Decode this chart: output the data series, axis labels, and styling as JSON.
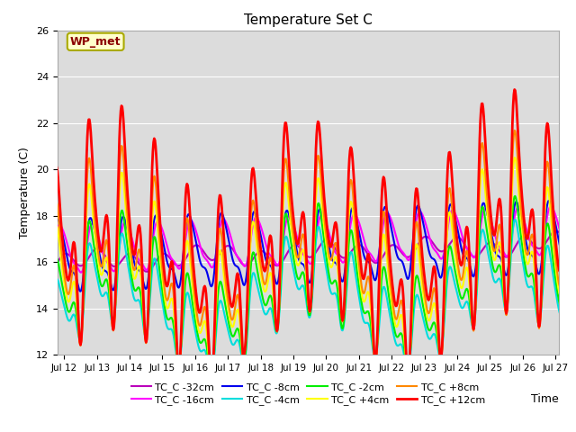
{
  "title": "Temperature Set C",
  "xlabel": "Time",
  "ylabel": "Temperature (C)",
  "ylim": [
    12,
    26
  ],
  "yticks": [
    12,
    14,
    16,
    18,
    20,
    22,
    24,
    26
  ],
  "xlim_days": [
    11.8,
    27.1
  ],
  "annotation_text": "WP_met",
  "annotation_color": "#8B0000",
  "annotation_bg": "#FFFFCC",
  "annotation_edge": "#AAAA00",
  "plot_bg": "#DCDCDC",
  "series": [
    {
      "label": "TC_C -32cm",
      "color": "#BB00BB",
      "lw": 1.5,
      "zorder": 3
    },
    {
      "label": "TC_C -16cm",
      "color": "#FF00FF",
      "lw": 1.5,
      "zorder": 4
    },
    {
      "label": "TC_C -8cm",
      "color": "#0000EE",
      "lw": 1.5,
      "zorder": 5
    },
    {
      "label": "TC_C -4cm",
      "color": "#00DDDD",
      "lw": 1.5,
      "zorder": 6
    },
    {
      "label": "TC_C -2cm",
      "color": "#00EE00",
      "lw": 1.5,
      "zorder": 7
    },
    {
      "label": "TC_C +4cm",
      "color": "#FFFF00",
      "lw": 1.5,
      "zorder": 8
    },
    {
      "label": "TC_C +8cm",
      "color": "#FF8800",
      "lw": 1.5,
      "zorder": 9
    },
    {
      "label": "TC_C +12cm",
      "color": "#FF0000",
      "lw": 2.0,
      "zorder": 10
    }
  ],
  "xtick_labels": [
    "Jul 12",
    "Jul 13",
    "Jul 14",
    "Jul 15",
    "Jul 16",
    "Jul 17",
    "Jul 18",
    "Jul 19",
    "Jul 20",
    "Jul 21",
    "Jul 22",
    "Jul 23",
    "Jul 24",
    "Jul 25",
    "Jul 26",
    "Jul 27"
  ],
  "xtick_positions": [
    12,
    13,
    14,
    15,
    16,
    17,
    18,
    19,
    20,
    21,
    22,
    23,
    24,
    25,
    26,
    27
  ],
  "grid_color": "#FFFFFF",
  "legend_ncol": 4,
  "legend_fontsize": 8
}
